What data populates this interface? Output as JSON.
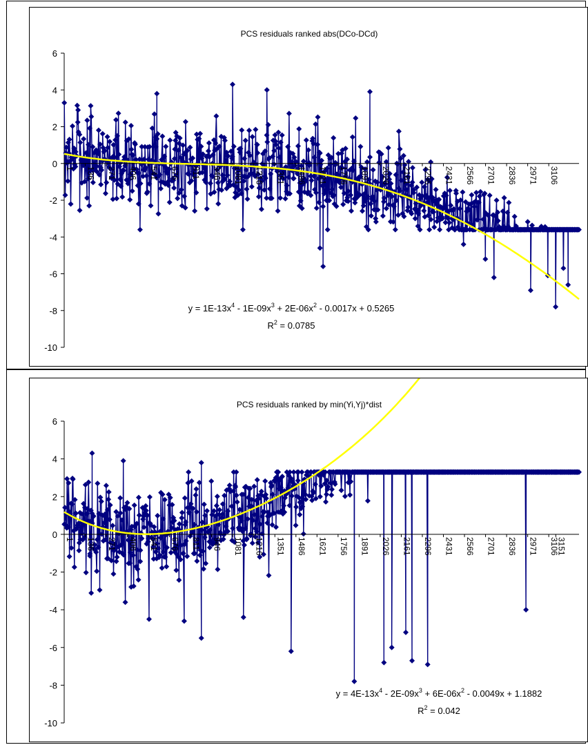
{
  "chart_data": [
    {
      "type": "line",
      "title": "PCS residuals ranked abs(DCo-DCd)",
      "xlabel": "",
      "ylabel": "",
      "ylim": [
        -10,
        6
      ],
      "xlim": [
        1,
        3300
      ],
      "y_ticks": [
        "6",
        "4",
        "2",
        "0",
        "-2",
        "-4",
        "-6",
        "-8",
        "-10"
      ],
      "x_tick_labels": [
        "1",
        "136",
        "271",
        "406",
        "541",
        "676",
        "811",
        "946",
        "1081",
        "1216",
        "1351",
        "1486",
        "1621",
        "1756",
        "1891",
        "2026",
        "2161",
        "2296",
        "2431",
        "2566",
        "2701",
        "2836",
        "2971",
        "3106"
      ],
      "series": [
        {
          "role": "residuals",
          "color": "#000080",
          "marker": "diamond",
          "count": 3300,
          "range": [
            -7.8,
            4.3
          ],
          "notable_points": [
            {
              "x": 1080,
              "y": 4.3
            },
            {
              "x": 1300,
              "y": 4.0
            },
            {
              "x": 595,
              "y": 3.8
            },
            {
              "x": 1960,
              "y": 3.9
            },
            {
              "x": 1640,
              "y": -4.6
            },
            {
              "x": 1660,
              "y": -5.6
            },
            {
              "x": 2755,
              "y": -6.2
            },
            {
              "x": 2700,
              "y": -5.2
            },
            {
              "x": 2990,
              "y": -6.9
            },
            {
              "x": 3100,
              "y": -6.1
            },
            {
              "x": 3150,
              "y": -7.8
            },
            {
              "x": 3230,
              "y": -6.6
            },
            {
              "x": 3200,
              "y": -5.7
            },
            {
              "x": 2560,
              "y": -4.4
            }
          ]
        },
        {
          "role": "trendline",
          "color": "#ffff00",
          "type": "poly4",
          "coefficients": [
            1e-13,
            -1e-09,
            2e-06,
            -0.0017,
            0.5265
          ]
        }
      ],
      "trend_equation": {
        "prefix": "y = 1E-13x",
        "e1": "4",
        "t2": " - 1E-09x",
        "e2": "3",
        "t3": " + 2E-06x",
        "e3": "2",
        "t4": " - 0.0017x + 0.5265"
      },
      "r2": {
        "label": "R",
        "exp": "2",
        "value": " = 0.0785"
      },
      "grid": false,
      "legend": "none"
    },
    {
      "type": "line",
      "title": "PCS residuals ranked by min(Yi,Yj)*dist",
      "xlabel": "",
      "ylabel": "",
      "ylim": [
        -10,
        6
      ],
      "xlim": [
        1,
        3300
      ],
      "y_ticks": [
        "6",
        "4",
        "2",
        "0",
        "-2",
        "-4",
        "-6",
        "-8",
        "-10"
      ],
      "x_tick_labels": [
        "1",
        "136",
        "271",
        "406",
        "541",
        "676",
        "811",
        "946",
        "1081",
        "1216",
        "1351",
        "1486",
        "1621",
        "1756",
        "1891",
        "2026",
        "2161",
        "2296",
        "2431",
        "2566",
        "2701",
        "2836",
        "2971",
        "3106",
        "3151"
      ],
      "series": [
        {
          "role": "residuals",
          "color": "#000080",
          "marker": "diamond",
          "count": 3300,
          "range": [
            -7.8,
            4.3
          ],
          "notable_points": [
            {
              "x": 180,
              "y": 4.3
            },
            {
              "x": 380,
              "y": 3.9
            },
            {
              "x": 545,
              "y": -4.5
            },
            {
              "x": 770,
              "y": -4.6
            },
            {
              "x": 880,
              "y": -5.5
            },
            {
              "x": 1150,
              "y": -4.4
            },
            {
              "x": 1455,
              "y": -6.2
            },
            {
              "x": 1860,
              "y": -7.8
            },
            {
              "x": 2050,
              "y": -6.8
            },
            {
              "x": 2100,
              "y": -6.0
            },
            {
              "x": 2190,
              "y": -5.2
            },
            {
              "x": 2230,
              "y": -6.7
            },
            {
              "x": 2330,
              "y": -6.9
            },
            {
              "x": 2960,
              "y": -4.0
            },
            {
              "x": 880,
              "y": 3.8
            }
          ]
        },
        {
          "role": "trendline",
          "color": "#ffff00",
          "type": "poly4",
          "coefficients": [
            4e-13,
            -2e-09,
            6e-06,
            -0.0049,
            1.1882
          ]
        }
      ],
      "trend_equation": {
        "prefix": "y = 4E-13x",
        "e1": "4",
        "t2": " - 2E-09x",
        "e2": "3",
        "t3": " + 6E-06x",
        "e3": "2",
        "t4": " - 0.0049x + 1.1882"
      },
      "r2": {
        "label": "R",
        "exp": "2",
        "value": " = 0.042"
      },
      "grid": false,
      "legend": "none"
    }
  ]
}
